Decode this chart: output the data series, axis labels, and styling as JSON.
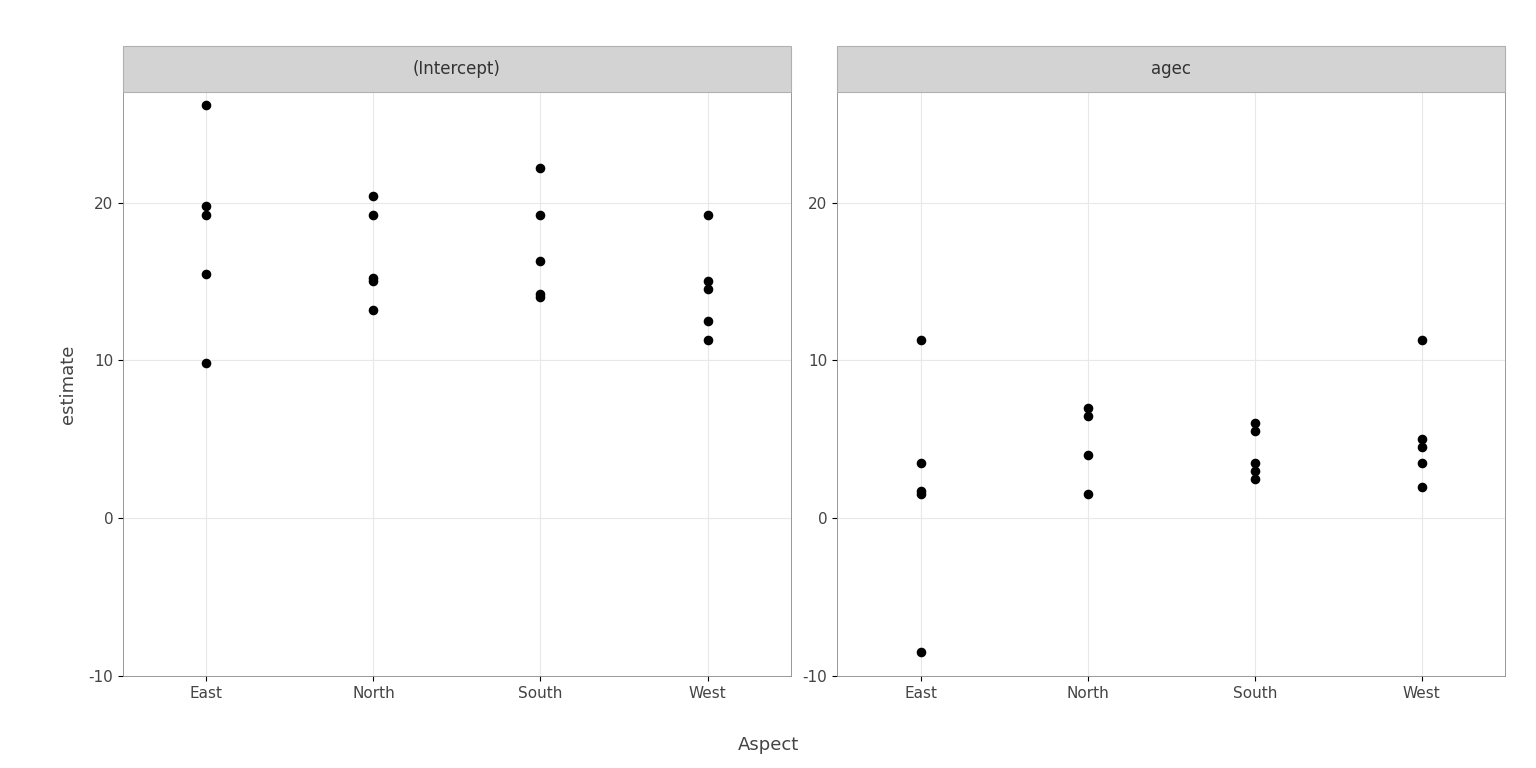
{
  "intercept": {
    "East": [
      26.2,
      19.8,
      19.2,
      15.5,
      9.8
    ],
    "North": [
      20.4,
      19.2,
      15.2,
      15.0,
      13.2
    ],
    "South": [
      22.2,
      19.2,
      16.3,
      14.2,
      14.0
    ],
    "West": [
      19.2,
      15.0,
      14.5,
      12.5,
      11.3
    ]
  },
  "agec": {
    "East": [
      11.3,
      3.5,
      1.7,
      1.5,
      -8.5
    ],
    "North": [
      7.0,
      6.5,
      4.0,
      1.5
    ],
    "South": [
      6.0,
      5.5,
      3.5,
      3.0,
      2.5
    ],
    "West": [
      11.3,
      5.0,
      4.5,
      3.5,
      2.0
    ]
  },
  "aspects": [
    "East",
    "North",
    "South",
    "West"
  ],
  "panel_titles": [
    "(Intercept)",
    "agec"
  ],
  "xlabel": "Aspect",
  "ylabel": "estimate",
  "ylim": [
    -10,
    27
  ],
  "yticks": [
    -10,
    0,
    10,
    20
  ],
  "dot_color": "#000000",
  "dot_size": 35,
  "background_color": "#ffffff",
  "panel_header_color": "#d3d3d3",
  "panel_header_edge_color": "#b0b0b0",
  "grid_color": "#e8e8e8",
  "axis_text_color": "#444444",
  "font_size_axis_label": 13,
  "font_size_tick": 11,
  "font_size_panel_title": 12,
  "spine_color": "#888888"
}
